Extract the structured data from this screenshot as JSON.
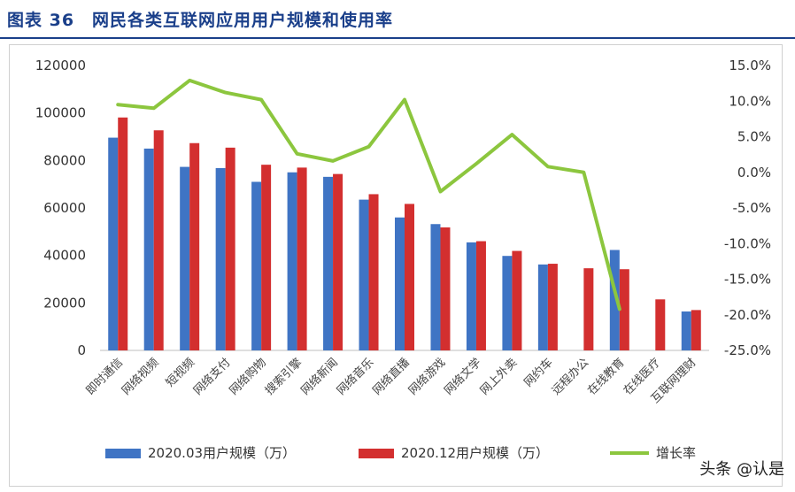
{
  "header": {
    "title": "图表 36　网民各类互联网应用用户规模和使用率"
  },
  "watermark": "头条 @认是",
  "chart_data": {
    "type": "bar",
    "categories": [
      "即时通信",
      "网络视频",
      "短视频",
      "网络支付",
      "网络购物",
      "搜索引擎",
      "网络新闻",
      "网络音乐",
      "网络直播",
      "网络游戏",
      "网络文学",
      "网上外卖",
      "网约车",
      "远程办公",
      "在线教育",
      "在线医疗",
      "互联网理财"
    ],
    "series": [
      {
        "name": "2020.03用户规模（万）",
        "type": "bar",
        "axis": "left",
        "color": "#3f74c4",
        "values": [
          89600,
          85000,
          77300,
          76800,
          71000,
          75000,
          73100,
          63500,
          56000,
          53200,
          45500,
          39800,
          36200,
          null,
          42300,
          null,
          16400
        ]
      },
      {
        "name": "2020.12用户规模（万）",
        "type": "bar",
        "axis": "left",
        "color": "#d32f2f",
        "values": [
          98100,
          92700,
          87300,
          85400,
          78200,
          77000,
          74300,
          65800,
          61700,
          51800,
          46000,
          41900,
          36500,
          34600,
          34200,
          21500,
          17000
        ]
      },
      {
        "name": "增长率",
        "type": "line",
        "axis": "right",
        "color": "#8cc63e",
        "values": [
          9.5,
          9.0,
          12.9,
          11.2,
          10.2,
          2.6,
          1.6,
          3.6,
          10.2,
          -2.7,
          1.2,
          5.3,
          0.8,
          0.0,
          -19.2,
          null,
          null
        ]
      }
    ],
    "y_left": {
      "min": 0,
      "max": 120000,
      "ticks": [
        "0",
        "20000",
        "40000",
        "60000",
        "80000",
        "100000",
        "120000"
      ]
    },
    "y_right": {
      "min": -25,
      "max": 15,
      "ticks": [
        "15.0%",
        "10.0%",
        "5.0%",
        "0.0%",
        "-5.0%",
        "-10.0%",
        "-15.0%",
        "-20.0%",
        "-25.0%"
      ]
    },
    "grid": false,
    "legend": "bottom"
  }
}
